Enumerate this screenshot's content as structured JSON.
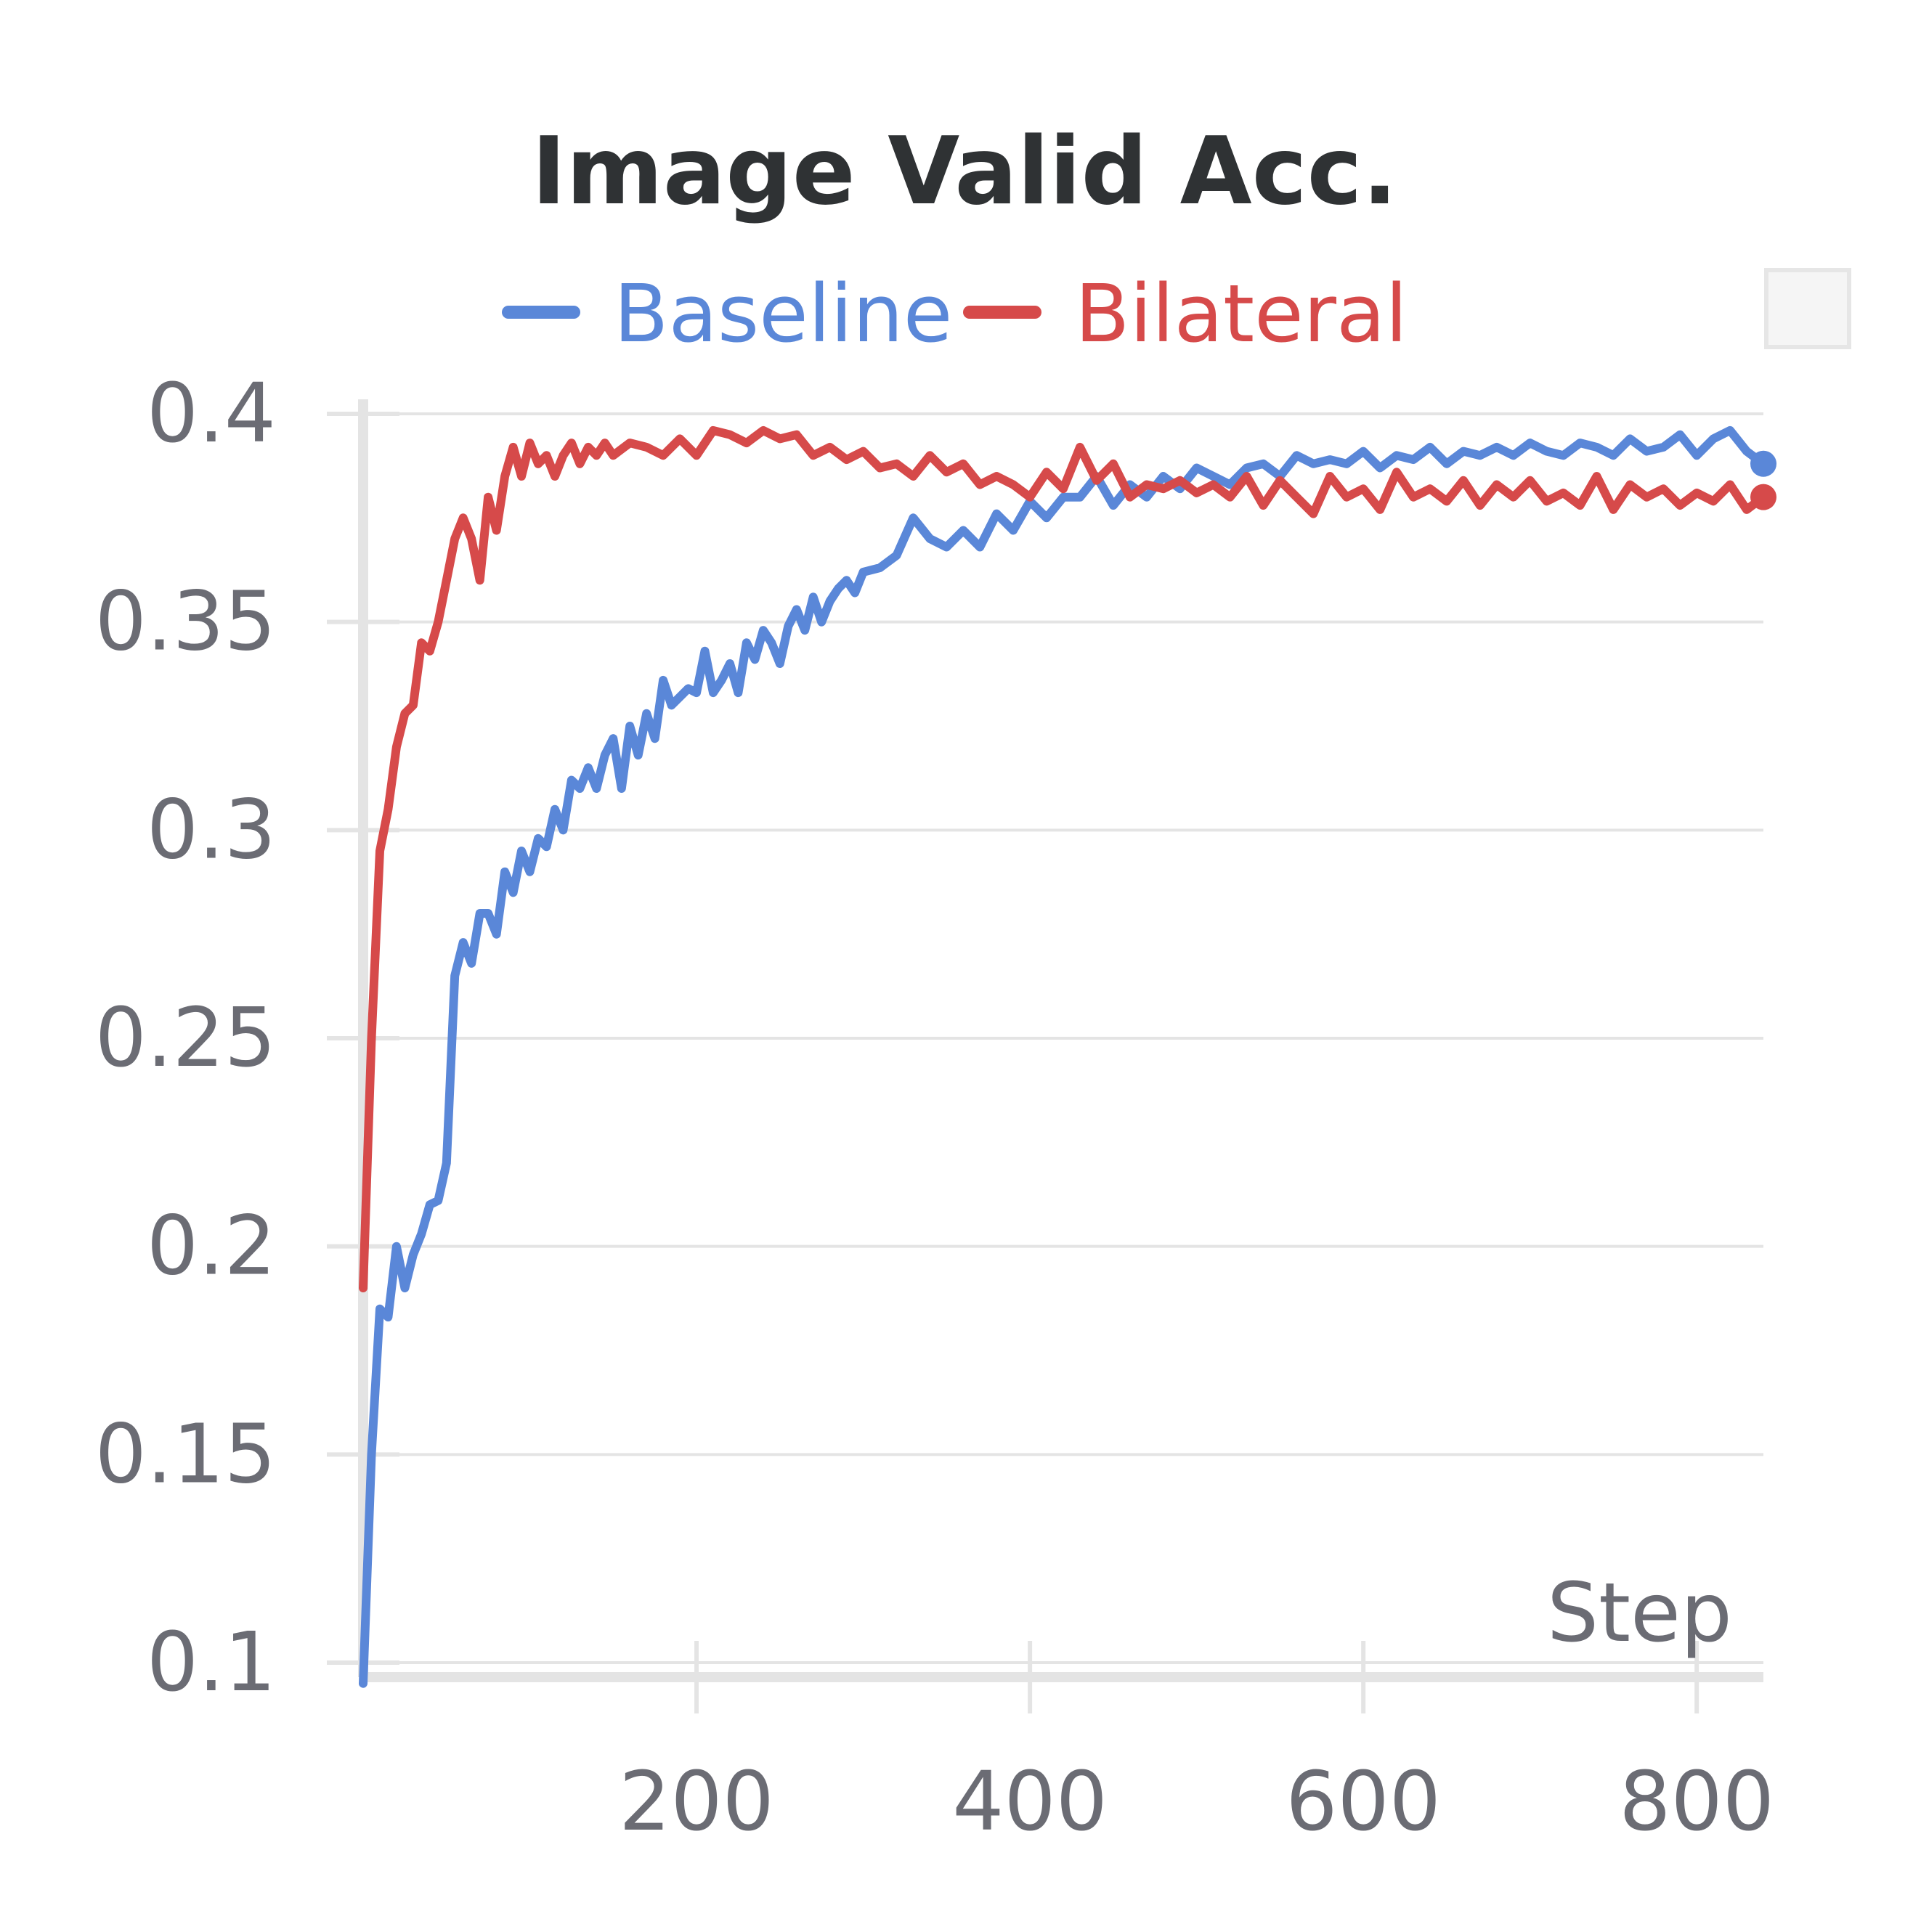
{
  "chart_data": {
    "type": "line",
    "title": "Image Valid Acc.",
    "xlabel": "Step",
    "ylabel": "",
    "xlim": [
      0,
      840
    ],
    "ylim": [
      0.1,
      0.4
    ],
    "xticks": [
      200,
      400,
      600,
      800
    ],
    "xtick_labels": [
      "200",
      "400",
      "600",
      "800"
    ],
    "yticks": [
      0.1,
      0.15,
      0.2,
      0.25,
      0.3,
      0.35,
      0.4
    ],
    "ytick_labels": [
      "0.1",
      "0.15",
      "0.2",
      "0.25",
      "0.3",
      "0.35",
      "0.4"
    ],
    "grid": true,
    "legend_position": "top",
    "series": [
      {
        "name": "Baseline",
        "color": "#5a87d8",
        "x": [
          0,
          5,
          10,
          15,
          20,
          25,
          30,
          35,
          40,
          45,
          50,
          55,
          60,
          65,
          70,
          75,
          80,
          85,
          90,
          95,
          100,
          105,
          110,
          115,
          120,
          125,
          130,
          135,
          140,
          145,
          150,
          155,
          160,
          165,
          170,
          175,
          180,
          185,
          190,
          195,
          200,
          205,
          210,
          215,
          220,
          225,
          230,
          235,
          240,
          245,
          250,
          255,
          260,
          265,
          270,
          275,
          280,
          285,
          290,
          295,
          300,
          310,
          320,
          330,
          340,
          350,
          360,
          370,
          380,
          390,
          400,
          410,
          420,
          430,
          440,
          450,
          460,
          470,
          480,
          490,
          500,
          510,
          520,
          530,
          540,
          550,
          560,
          570,
          580,
          590,
          600,
          610,
          620,
          630,
          640,
          650,
          660,
          670,
          680,
          690,
          700,
          710,
          720,
          730,
          740,
          750,
          760,
          770,
          780,
          790,
          800,
          810,
          820,
          830,
          840
        ],
        "values": [
          0.095,
          0.15,
          0.185,
          0.183,
          0.2,
          0.19,
          0.198,
          0.203,
          0.21,
          0.211,
          0.22,
          0.265,
          0.273,
          0.268,
          0.28,
          0.28,
          0.275,
          0.29,
          0.285,
          0.295,
          0.29,
          0.298,
          0.296,
          0.305,
          0.3,
          0.312,
          0.31,
          0.315,
          0.31,
          0.318,
          0.322,
          0.31,
          0.325,
          0.318,
          0.328,
          0.322,
          0.336,
          0.33,
          0.332,
          0.334,
          0.333,
          0.343,
          0.333,
          0.336,
          0.34,
          0.333,
          0.345,
          0.341,
          0.348,
          0.345,
          0.34,
          0.349,
          0.353,
          0.348,
          0.356,
          0.35,
          0.355,
          0.358,
          0.36,
          0.357,
          0.362,
          0.363,
          0.366,
          0.375,
          0.37,
          0.368,
          0.372,
          0.368,
          0.376,
          0.372,
          0.379,
          0.375,
          0.38,
          0.38,
          0.385,
          0.378,
          0.383,
          0.38,
          0.385,
          0.382,
          0.387,
          0.385,
          0.383,
          0.387,
          0.388,
          0.385,
          0.39,
          0.388,
          0.389,
          0.388,
          0.391,
          0.387,
          0.39,
          0.389,
          0.392,
          0.388,
          0.391,
          0.39,
          0.392,
          0.39,
          0.393,
          0.391,
          0.39,
          0.393,
          0.392,
          0.39,
          0.394,
          0.391,
          0.392,
          0.395,
          0.39,
          0.394,
          0.396,
          0.391,
          0.388
        ]
      },
      {
        "name": "Bilateral",
        "color": "#d64a4a",
        "x": [
          0,
          5,
          10,
          15,
          20,
          25,
          30,
          35,
          40,
          45,
          50,
          55,
          60,
          65,
          70,
          75,
          80,
          85,
          90,
          95,
          100,
          105,
          110,
          115,
          120,
          125,
          130,
          135,
          140,
          145,
          150,
          160,
          170,
          180,
          190,
          200,
          210,
          220,
          230,
          240,
          250,
          260,
          270,
          280,
          290,
          300,
          310,
          320,
          330,
          340,
          350,
          360,
          370,
          380,
          390,
          400,
          410,
          420,
          430,
          440,
          450,
          460,
          470,
          480,
          490,
          500,
          510,
          520,
          530,
          540,
          550,
          560,
          570,
          580,
          590,
          600,
          610,
          620,
          630,
          640,
          650,
          660,
          670,
          680,
          690,
          700,
          710,
          720,
          730,
          740,
          750,
          760,
          770,
          780,
          790,
          800,
          810,
          820,
          830,
          840
        ],
        "values": [
          0.19,
          0.25,
          0.295,
          0.305,
          0.32,
          0.328,
          0.33,
          0.345,
          0.343,
          0.35,
          0.36,
          0.37,
          0.375,
          0.37,
          0.36,
          0.38,
          0.372,
          0.385,
          0.392,
          0.385,
          0.393,
          0.388,
          0.39,
          0.385,
          0.39,
          0.393,
          0.388,
          0.392,
          0.39,
          0.393,
          0.39,
          0.393,
          0.392,
          0.39,
          0.394,
          0.39,
          0.396,
          0.395,
          0.393,
          0.396,
          0.394,
          0.395,
          0.39,
          0.392,
          0.389,
          0.391,
          0.387,
          0.388,
          0.385,
          0.39,
          0.386,
          0.388,
          0.383,
          0.385,
          0.383,
          0.38,
          0.386,
          0.382,
          0.392,
          0.384,
          0.388,
          0.38,
          0.383,
          0.382,
          0.384,
          0.381,
          0.383,
          0.38,
          0.385,
          0.378,
          0.384,
          0.38,
          0.376,
          0.385,
          0.38,
          0.382,
          0.377,
          0.386,
          0.38,
          0.382,
          0.379,
          0.384,
          0.378,
          0.383,
          0.38,
          0.384,
          0.379,
          0.381,
          0.378,
          0.385,
          0.377,
          0.383,
          0.38,
          0.382,
          0.378,
          0.381,
          0.379,
          0.383,
          0.377,
          0.38
        ]
      }
    ]
  }
}
